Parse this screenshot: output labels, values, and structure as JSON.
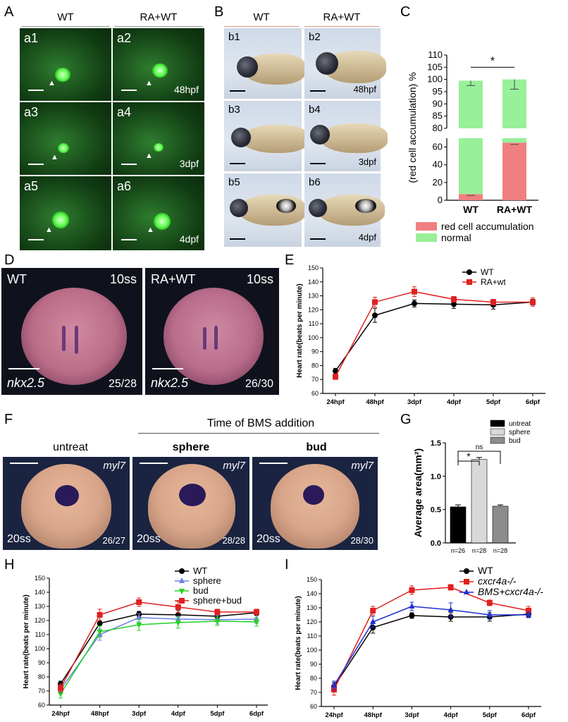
{
  "panel_labels": {
    "a": "A",
    "b": "B",
    "c": "C",
    "d": "D",
    "e": "E",
    "f": "F",
    "g": "G",
    "h": "H",
    "i": "I"
  },
  "panel_a": {
    "col_headers": [
      "WT",
      "RA+WT"
    ],
    "tiles": [
      {
        "label": "a1",
        "time": ""
      },
      {
        "label": "a2",
        "time": "48hpf"
      },
      {
        "label": "a3",
        "time": ""
      },
      {
        "label": "a4",
        "time": "3dpf"
      },
      {
        "label": "a5",
        "time": ""
      },
      {
        "label": "a6",
        "time": "4dpf"
      }
    ]
  },
  "panel_b": {
    "col_headers": [
      "WT",
      "RA+WT"
    ],
    "tiles": [
      {
        "label": "b1",
        "time": ""
      },
      {
        "label": "b2",
        "time": "48hpf"
      },
      {
        "label": "b3",
        "time": ""
      },
      {
        "label": "b4",
        "time": "3dpf"
      },
      {
        "label": "b5",
        "time": ""
      },
      {
        "label": "b6",
        "time": "4dpf"
      }
    ]
  },
  "panel_d": {
    "images": [
      {
        "group": "WT",
        "stage": "10ss",
        "gene": "nkx2.5",
        "count": "25/28"
      },
      {
        "group": "RA+WT",
        "stage": "10ss",
        "gene": "nkx2.5",
        "count": "26/30"
      }
    ]
  },
  "panel_f": {
    "header": "Time of BMS addition",
    "images": [
      {
        "title": "untreat",
        "gene": "myl7",
        "stage": "20ss",
        "count": "26/27"
      },
      {
        "title": "sphere",
        "gene": "myl7",
        "stage": "20ss",
        "count": "28/28"
      },
      {
        "title": "bud",
        "gene": "myl7",
        "stage": "20ss",
        "count": "28/30"
      }
    ]
  },
  "chart_data": [
    {
      "id": "C",
      "type": "bar",
      "stacked": true,
      "categories": [
        "WT",
        "RA+WT"
      ],
      "ylabel": "(red cell accumulation) %",
      "yticks_upper": [
        80,
        85,
        90,
        95,
        100,
        105,
        110
      ],
      "yticks_lower": [
        0,
        20,
        40,
        60
      ],
      "series": [
        {
          "name": "red cell accumulation",
          "color": "#f08080",
          "values": [
            7,
            65
          ],
          "errors": [
            1.5,
            2
          ]
        },
        {
          "name": "normal",
          "color": "#98f098",
          "values": [
            92.5,
            35
          ],
          "errors": [
            2,
            4
          ]
        }
      ],
      "totals": [
        99.5,
        100
      ],
      "significance": "*"
    },
    {
      "id": "E",
      "type": "line",
      "x": [
        "24hpf",
        "48hpf",
        "3dpf",
        "4dpf",
        "5dpf",
        "6dpf"
      ],
      "ylabel": "Heart rate(beats per minute)",
      "ylim": [
        60,
        150
      ],
      "yticks": [
        60,
        70,
        80,
        90,
        100,
        110,
        120,
        130,
        140,
        150
      ],
      "series": [
        {
          "name": "WT",
          "color": "#000000",
          "marker": "circle",
          "values": [
            76,
            116,
            124.5,
            124,
            123.5,
            125.5
          ],
          "errors": [
            2,
            5,
            2.5,
            3,
            3,
            2
          ]
        },
        {
          "name": "RA+wt",
          "color": "#e02020",
          "marker": "square",
          "values": [
            72,
            125.5,
            133,
            127.5,
            125.5,
            125.5
          ],
          "errors": [
            2,
            3.5,
            3.5,
            2,
            2,
            3
          ]
        }
      ]
    },
    {
      "id": "G",
      "type": "bar",
      "categories": [
        "untreat",
        "sphere",
        "bud"
      ],
      "ylabel": "Average area(mm²)",
      "ylim": [
        0,
        1.5
      ],
      "yticks": [
        0.0,
        0.5,
        1.0,
        1.5
      ],
      "ytick_labels": [
        "0.0",
        "0.5",
        "1.0",
        "1.5"
      ],
      "series": [
        {
          "values": [
            0.54,
            1.25,
            0.55
          ],
          "errors": [
            0.03,
            0.03,
            0.02
          ]
        }
      ],
      "colors": [
        "#000000",
        "#d9d9d9",
        "#8c8c8c"
      ],
      "n_labels": [
        "n=26",
        "n=28",
        "n=28"
      ],
      "significance": [
        {
          "pair": [
            0,
            1
          ],
          "text": "*"
        },
        {
          "pair": [
            0,
            2
          ],
          "text": "ns"
        }
      ]
    },
    {
      "id": "H",
      "type": "line",
      "x": [
        "24hpf",
        "48hpf",
        "3dpf",
        "4dpf",
        "5dpf",
        "6dpf"
      ],
      "ylabel": "Heart rate(beats per minute)",
      "ylim": [
        60,
        150
      ],
      "yticks": [
        60,
        70,
        80,
        90,
        100,
        110,
        120,
        130,
        140,
        150
      ],
      "series": [
        {
          "name": "WT",
          "color": "#000000",
          "marker": "circle",
          "values": [
            75,
            118,
            124.5,
            124,
            123,
            125.5
          ],
          "errors": [
            2,
            5,
            2,
            3,
            2,
            2
          ]
        },
        {
          "name": "sphere",
          "color": "#6f80e8",
          "marker": "triangle",
          "values": [
            71,
            110,
            122,
            121,
            120.5,
            121
          ],
          "errors": [
            3,
            4,
            3,
            2,
            3,
            3
          ]
        },
        {
          "name": "bud",
          "color": "#22d322",
          "marker": "triangle-down",
          "values": [
            68,
            112,
            117,
            118.5,
            119.5,
            119
          ],
          "errors": [
            3,
            4,
            4,
            4,
            3,
            3
          ]
        },
        {
          "name": "sphere+bud",
          "color": "#e02020",
          "marker": "square",
          "values": [
            72,
            124,
            133,
            129.5,
            126,
            126
          ],
          "errors": [
            3,
            4,
            3,
            4,
            2,
            2
          ]
        }
      ]
    },
    {
      "id": "I",
      "type": "line",
      "x": [
        "24hpf",
        "48hpf",
        "3dpf",
        "4dpf",
        "5dpf",
        "6dpf"
      ],
      "ylabel": "Heart rate(beats per minute)",
      "ylim": [
        60,
        150
      ],
      "yticks": [
        60,
        70,
        80,
        90,
        100,
        110,
        120,
        130,
        140,
        150
      ],
      "series": [
        {
          "name": "WT",
          "color": "#000000",
          "marker": "circle",
          "values": [
            74,
            116,
            124.5,
            123.5,
            123.5,
            125.5
          ],
          "errors": [
            3,
            4,
            2,
            3,
            3,
            2
          ]
        },
        {
          "name": "cxcr4a-/-",
          "color": "#e02020",
          "marker": "square",
          "values": [
            72,
            128,
            142.5,
            144.5,
            133.5,
            128
          ],
          "errors": [
            4,
            3,
            3,
            2,
            2,
            3
          ]
        },
        {
          "name": "BMS+cxcr4a-/-",
          "color": "#1f2fd0",
          "marker": "triangle",
          "values": [
            75,
            120,
            131,
            128.5,
            125,
            125
          ],
          "errors": [
            3,
            4,
            3,
            5,
            3,
            2
          ]
        }
      ]
    }
  ]
}
